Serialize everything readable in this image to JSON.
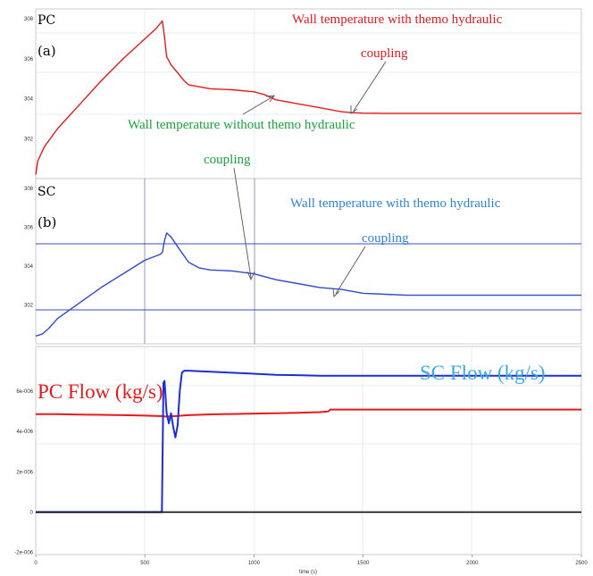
{
  "chart_data": [
    {
      "type": "line",
      "panel_label": "PC",
      "panel_letter": "(a)",
      "ylim": [
        300,
        308.5
      ],
      "yticks": [
        "302",
        "304",
        "306",
        "308"
      ],
      "xlim": [
        0,
        2500
      ],
      "grid": true,
      "series": [
        {
          "color": "#e8191b",
          "x": [
            0,
            10,
            40,
            100,
            200,
            300,
            400,
            500,
            550,
            580,
            590,
            600,
            620,
            650,
            680,
            700,
            750,
            800,
            900,
            1000,
            1050,
            1100,
            1200,
            1300,
            1400,
            1450,
            1500,
            1600,
            1800,
            2000,
            2200,
            2500
          ],
          "y": [
            300.2,
            300.9,
            301.6,
            302.5,
            303.7,
            304.9,
            306.0,
            307.0,
            307.5,
            307.9,
            307.1,
            306.1,
            305.7,
            305.3,
            304.9,
            304.7,
            304.6,
            304.5,
            304.45,
            304.35,
            304.2,
            303.95,
            303.75,
            303.55,
            303.35,
            303.3,
            303.28,
            303.27,
            303.27,
            303.27,
            303.27,
            303.27
          ]
        }
      ],
      "annotations": [
        {
          "text": "Wall temperature with themo hydraulic",
          "color": "#e8191b"
        },
        {
          "text": "coupling",
          "color": "#e8191b"
        },
        {
          "text": "Wall temperature without themo hydraulic",
          "color": "#1aa53a"
        },
        {
          "text": "coupling",
          "color": "#1aa53a"
        }
      ]
    },
    {
      "type": "line",
      "panel_label": "SC",
      "panel_letter": "(b)",
      "ylim": [
        300,
        308.5
      ],
      "yticks": [
        "302",
        "304",
        "306",
        "308"
      ],
      "xlim": [
        0,
        2500
      ],
      "grid": true,
      "series": [
        {
          "color": "#2e4bc7",
          "x": [
            0,
            30,
            60,
            100,
            200,
            300,
            400,
            500,
            570,
            580,
            590,
            600,
            620,
            650,
            700,
            750,
            800,
            900,
            1000,
            1100,
            1200,
            1300,
            1400,
            1500,
            1600,
            1700,
            1800,
            2000,
            2200,
            2500
          ],
          "y": [
            300.4,
            300.5,
            300.8,
            301.3,
            302.1,
            302.9,
            303.6,
            304.3,
            304.6,
            304.7,
            305.3,
            305.7,
            305.5,
            305.0,
            304.2,
            303.9,
            303.8,
            303.75,
            303.6,
            303.3,
            303.1,
            302.9,
            302.8,
            302.6,
            302.55,
            302.5,
            302.5,
            302.5,
            302.5,
            302.5
          ]
        }
      ],
      "annotations": [
        {
          "text": "Wall temperature with themo hydraulic",
          "color": "#2e86d8"
        },
        {
          "text": "coupling",
          "color": "#2e86d8"
        }
      ]
    },
    {
      "type": "line",
      "ylim": [
        -2.1e-06,
        8.2e-06
      ],
      "yticks": [
        "6e-006",
        "4e-006",
        "2e-006",
        "0",
        "-2e-006"
      ],
      "xlim": [
        0,
        2500
      ],
      "xticks": [
        "0",
        "500",
        "1000",
        "1500",
        "2000",
        "2500"
      ],
      "xlabel": "time (s)",
      "grid": true,
      "series": [
        {
          "name": "PC Flow (kg/s)",
          "color": "#e8191b",
          "x": [
            0,
            100,
            200,
            300,
            400,
            500,
            580,
            600,
            650,
            700,
            800,
            900,
            1000,
            1100,
            1200,
            1300,
            1340,
            1350,
            1500,
            2000,
            2500
          ],
          "y": [
            4.85e-06,
            4.85e-06,
            4.83e-06,
            4.82e-06,
            4.8e-06,
            4.78e-06,
            4.75e-06,
            4.73e-06,
            4.76e-06,
            4.8e-06,
            4.84e-06,
            4.86e-06,
            4.88e-06,
            4.9e-06,
            4.92e-06,
            4.95e-06,
            4.98e-06,
            5.08e-06,
            5.08e-06,
            5.08e-06,
            5.08e-06
          ]
        },
        {
          "name": "SC Flow (kg/s)",
          "color": "#1a2fd6",
          "x": [
            0,
            560,
            578,
            585,
            590,
            600,
            610,
            620,
            630,
            640,
            650,
            660,
            670,
            680,
            700,
            800,
            900,
            1000,
            1100,
            1200,
            1300,
            1500,
            2000,
            2490,
            2500
          ],
          "y": [
            0,
            0,
            0,
            6.4e-06,
            6.5e-06,
            4.9e-06,
            4.4e-06,
            4.9e-06,
            4.2e-06,
            3.7e-06,
            4.3e-06,
            6e-06,
            6.9e-06,
            7e-06,
            7e-06,
            6.95e-06,
            6.9e-06,
            6.85e-06,
            6.8e-06,
            6.78e-06,
            6.75e-06,
            6.75e-06,
            6.75e-06,
            6.75e-06,
            6.75e-06
          ]
        },
        {
          "color": "#000000",
          "x": [
            0,
            2500
          ],
          "y": [
            0,
            0
          ]
        }
      ],
      "annotations": [
        {
          "text": "PC Flow (kg/s)",
          "color": "#e8191b"
        },
        {
          "text": "SC Flow (kg/s)",
          "color": "#39a9e8"
        }
      ]
    }
  ]
}
